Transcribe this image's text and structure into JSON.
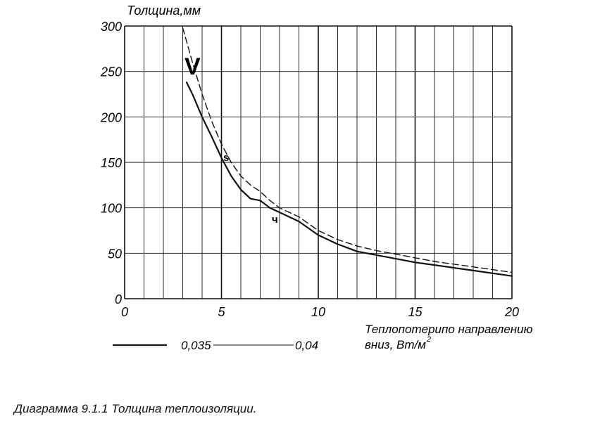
{
  "chart_data": {
    "type": "line",
    "ylabel": "Толщина,мм",
    "xlabel_line1": "Теплопотерипо направлению",
    "xlabel_line2": "вниз, Вт/м",
    "xlabel_sup": "2",
    "x_ticks": [
      "0",
      "5",
      "10",
      "15",
      "20"
    ],
    "y_ticks": [
      "0",
      "50",
      "100",
      "150",
      "200",
      "250",
      "300"
    ],
    "xlim": [
      0,
      20
    ],
    "ylim": [
      0,
      300
    ],
    "grid": true,
    "annotations": [
      "V",
      "s",
      "ч"
    ],
    "series": [
      {
        "name": "0,035",
        "style": "solid",
        "x": [
          3.2,
          3.5,
          4.0,
          4.5,
          5.0,
          5.5,
          6.0,
          6.5,
          7.0,
          7.5,
          8.0,
          9.0,
          10.0,
          11.0,
          12.0,
          13.0,
          14.0,
          15.0,
          16.0,
          17.0,
          18.0,
          19.0,
          20.0
        ],
        "y": [
          238,
          225,
          200,
          178,
          155,
          135,
          120,
          110,
          108,
          100,
          95,
          85,
          70,
          60,
          52,
          48,
          44,
          40,
          37,
          34,
          31,
          28,
          25
        ]
      },
      {
        "name": "0,04",
        "style": "dashed",
        "x": [
          3.0,
          3.5,
          4.0,
          4.5,
          5.0,
          5.5,
          6.0,
          6.5,
          7.0,
          7.5,
          8.0,
          9.0,
          10.0,
          11.0,
          12.0,
          13.0,
          14.0,
          15.0,
          16.0,
          17.0,
          18.0,
          19.0,
          20.0
        ],
        "y": [
          298,
          260,
          225,
          195,
          170,
          150,
          135,
          125,
          118,
          108,
          100,
          90,
          75,
          65,
          58,
          53,
          49,
          45,
          41,
          38,
          35,
          32,
          29
        ]
      }
    ]
  },
  "caption": "Диаграмма 9.1.1 Толщина теплоизоляции."
}
